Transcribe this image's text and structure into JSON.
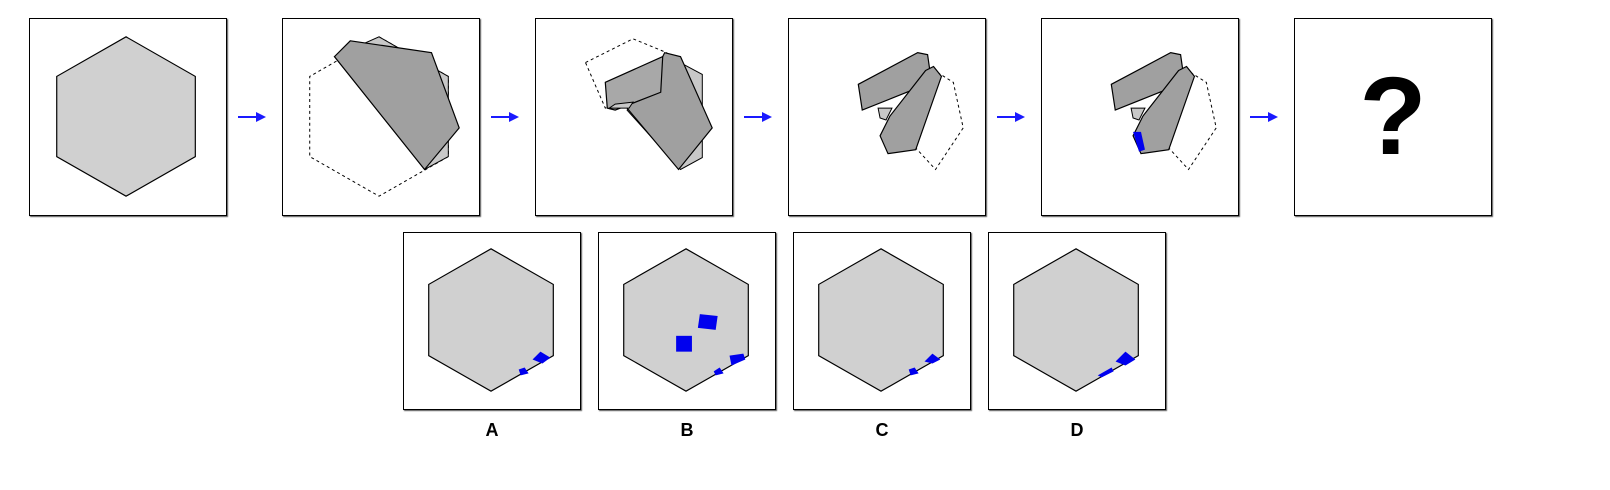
{
  "colors": {
    "paper": "#d0d0d0",
    "folded": "#a0a0a0",
    "hole": "#0000ee",
    "arrow": "#1a1aff",
    "outline": "#000000"
  },
  "sequence": {
    "question_mark": "?",
    "arrow_icon": "right-arrow-icon"
  },
  "options": [
    {
      "label": "A"
    },
    {
      "label": "B"
    },
    {
      "label": "C"
    },
    {
      "label": "D"
    }
  ]
}
